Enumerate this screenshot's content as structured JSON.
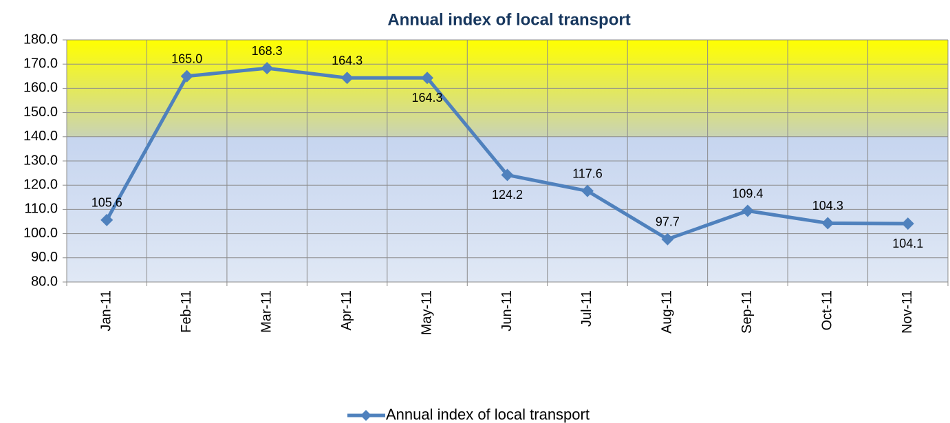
{
  "chart_data": {
    "type": "line",
    "title": "Annual index of local transport",
    "categories": [
      "Jan-11",
      "Feb-11",
      "Mar-11",
      "Apr-11",
      "May-11",
      "Jun-11",
      "Jul-11",
      "Aug-11",
      "Sep-11",
      "Oct-11",
      "Nov-11"
    ],
    "series": [
      {
        "name": "Annual index of local transport",
        "color": "#4f81bd",
        "values": [
          105.6,
          165.0,
          168.3,
          164.3,
          164.3,
          124.2,
          117.6,
          97.7,
          109.4,
          104.3,
          104.1
        ],
        "value_labels": [
          "105.6",
          "165.0",
          "168.3",
          "164.3",
          "164.3",
          "124.2",
          "117.6",
          "97.7",
          "109.4",
          "104.3",
          "104.1"
        ]
      }
    ],
    "ylim": [
      80,
      180
    ],
    "yticks": [
      {
        "value": 80,
        "label": "80.0"
      },
      {
        "value": 90,
        "label": "90.0"
      },
      {
        "value": 100,
        "label": "100.0"
      },
      {
        "value": 110,
        "label": "110.0"
      },
      {
        "value": 120,
        "label": "120.0"
      },
      {
        "value": 130,
        "label": "130.0"
      },
      {
        "value": 140,
        "label": "140.0"
      },
      {
        "value": 150,
        "label": "150.0"
      },
      {
        "value": 160,
        "label": "160.0"
      },
      {
        "value": 170,
        "label": "170.0"
      },
      {
        "value": 180,
        "label": "180.0"
      }
    ],
    "grid": true,
    "legend": "bottom"
  }
}
